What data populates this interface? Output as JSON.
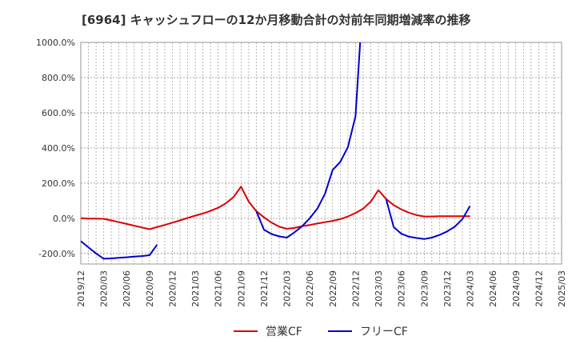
{
  "chart_data": {
    "type": "line",
    "title": "[6964]  キャッシュフローの12か月移動合計の対前年同期増減率の推移",
    "xlabel": "",
    "ylabel": "",
    "ylim": [
      -260,
      1000
    ],
    "yticks": [
      1000,
      800,
      600,
      400,
      200,
      0,
      -200
    ],
    "ytick_labels": [
      "1000.0%",
      "800.0%",
      "600.0%",
      "400.0%",
      "200.0%",
      "0.0%",
      "-200.0%"
    ],
    "categories": [
      "2019/12",
      "2020/03",
      "2020/06",
      "2020/09",
      "2020/12",
      "2021/03",
      "2021/06",
      "2021/09",
      "2021/12",
      "2022/03",
      "2022/06",
      "2022/09",
      "2022/12",
      "2023/03",
      "2023/06",
      "2023/09",
      "2023/12",
      "2024/03",
      "2024/06",
      "2024/09",
      "2024/12",
      "2025/03"
    ],
    "grid": true,
    "legend_position": "bottom-center",
    "series": [
      {
        "name": "営業CF",
        "color": "#dd0000",
        "points": [
          [
            0,
            0
          ],
          [
            0.333,
            -2
          ],
          [
            0.667,
            -2
          ],
          [
            1,
            -3
          ],
          [
            1.333,
            -12
          ],
          [
            1.667,
            -22
          ],
          [
            2,
            -32
          ],
          [
            2.333,
            -42
          ],
          [
            2.667,
            -52
          ],
          [
            3,
            -62
          ],
          [
            3.333,
            -50
          ],
          [
            3.667,
            -38
          ],
          [
            4,
            -25
          ],
          [
            4.333,
            -12
          ],
          [
            4.667,
            2
          ],
          [
            5,
            15
          ],
          [
            5.333,
            27
          ],
          [
            5.667,
            42
          ],
          [
            6,
            60
          ],
          [
            6.333,
            85
          ],
          [
            6.667,
            120
          ],
          [
            7,
            180
          ],
          [
            7.333,
            95
          ],
          [
            7.667,
            40
          ],
          [
            8,
            5
          ],
          [
            8.333,
            -25
          ],
          [
            8.667,
            -48
          ],
          [
            9,
            -60
          ],
          [
            9.333,
            -55
          ],
          [
            9.667,
            -45
          ],
          [
            10,
            -38
          ],
          [
            10.333,
            -30
          ],
          [
            10.667,
            -22
          ],
          [
            11,
            -15
          ],
          [
            11.333,
            -5
          ],
          [
            11.667,
            10
          ],
          [
            12,
            30
          ],
          [
            12.333,
            55
          ],
          [
            12.667,
            95
          ],
          [
            13,
            160
          ],
          [
            13.333,
            110
          ],
          [
            13.667,
            75
          ],
          [
            14,
            50
          ],
          [
            14.333,
            32
          ],
          [
            14.667,
            18
          ],
          [
            15,
            10
          ],
          [
            15.333,
            10
          ],
          [
            15.667,
            12
          ],
          [
            16,
            12
          ],
          [
            16.333,
            12
          ],
          [
            16.667,
            12
          ],
          [
            17,
            12
          ]
        ]
      },
      {
        "name": "フリーCF",
        "color": "#0000cc",
        "points": [
          [
            0,
            -130
          ],
          [
            0.333,
            -165
          ],
          [
            0.667,
            -200
          ],
          [
            1,
            -230
          ],
          [
            1.333,
            -228
          ],
          [
            1.667,
            -225
          ],
          [
            2,
            -222
          ],
          [
            2.333,
            -218
          ],
          [
            2.667,
            -215
          ],
          [
            3,
            -210
          ],
          [
            3.333,
            -150
          ],
          [
            null,
            null
          ],
          [
            7.667,
            40
          ],
          [
            8,
            -65
          ],
          [
            8.333,
            -90
          ],
          [
            8.667,
            -103
          ],
          [
            9,
            -110
          ],
          [
            9.333,
            -80
          ],
          [
            9.667,
            -45
          ],
          [
            10,
            0
          ],
          [
            10.333,
            55
          ],
          [
            10.667,
            140
          ],
          [
            11,
            275
          ],
          [
            11.333,
            320
          ],
          [
            11.667,
            405
          ],
          [
            12,
            580
          ],
          [
            12.2,
            1000
          ],
          [
            null,
            null
          ],
          [
            13.333,
            110
          ],
          [
            13.667,
            -50
          ],
          [
            14,
            -88
          ],
          [
            14.333,
            -105
          ],
          [
            14.667,
            -112
          ],
          [
            15,
            -118
          ],
          [
            15.333,
            -110
          ],
          [
            15.667,
            -95
          ],
          [
            16,
            -75
          ],
          [
            16.333,
            -48
          ],
          [
            16.667,
            -5
          ],
          [
            17,
            70
          ]
        ]
      }
    ]
  }
}
